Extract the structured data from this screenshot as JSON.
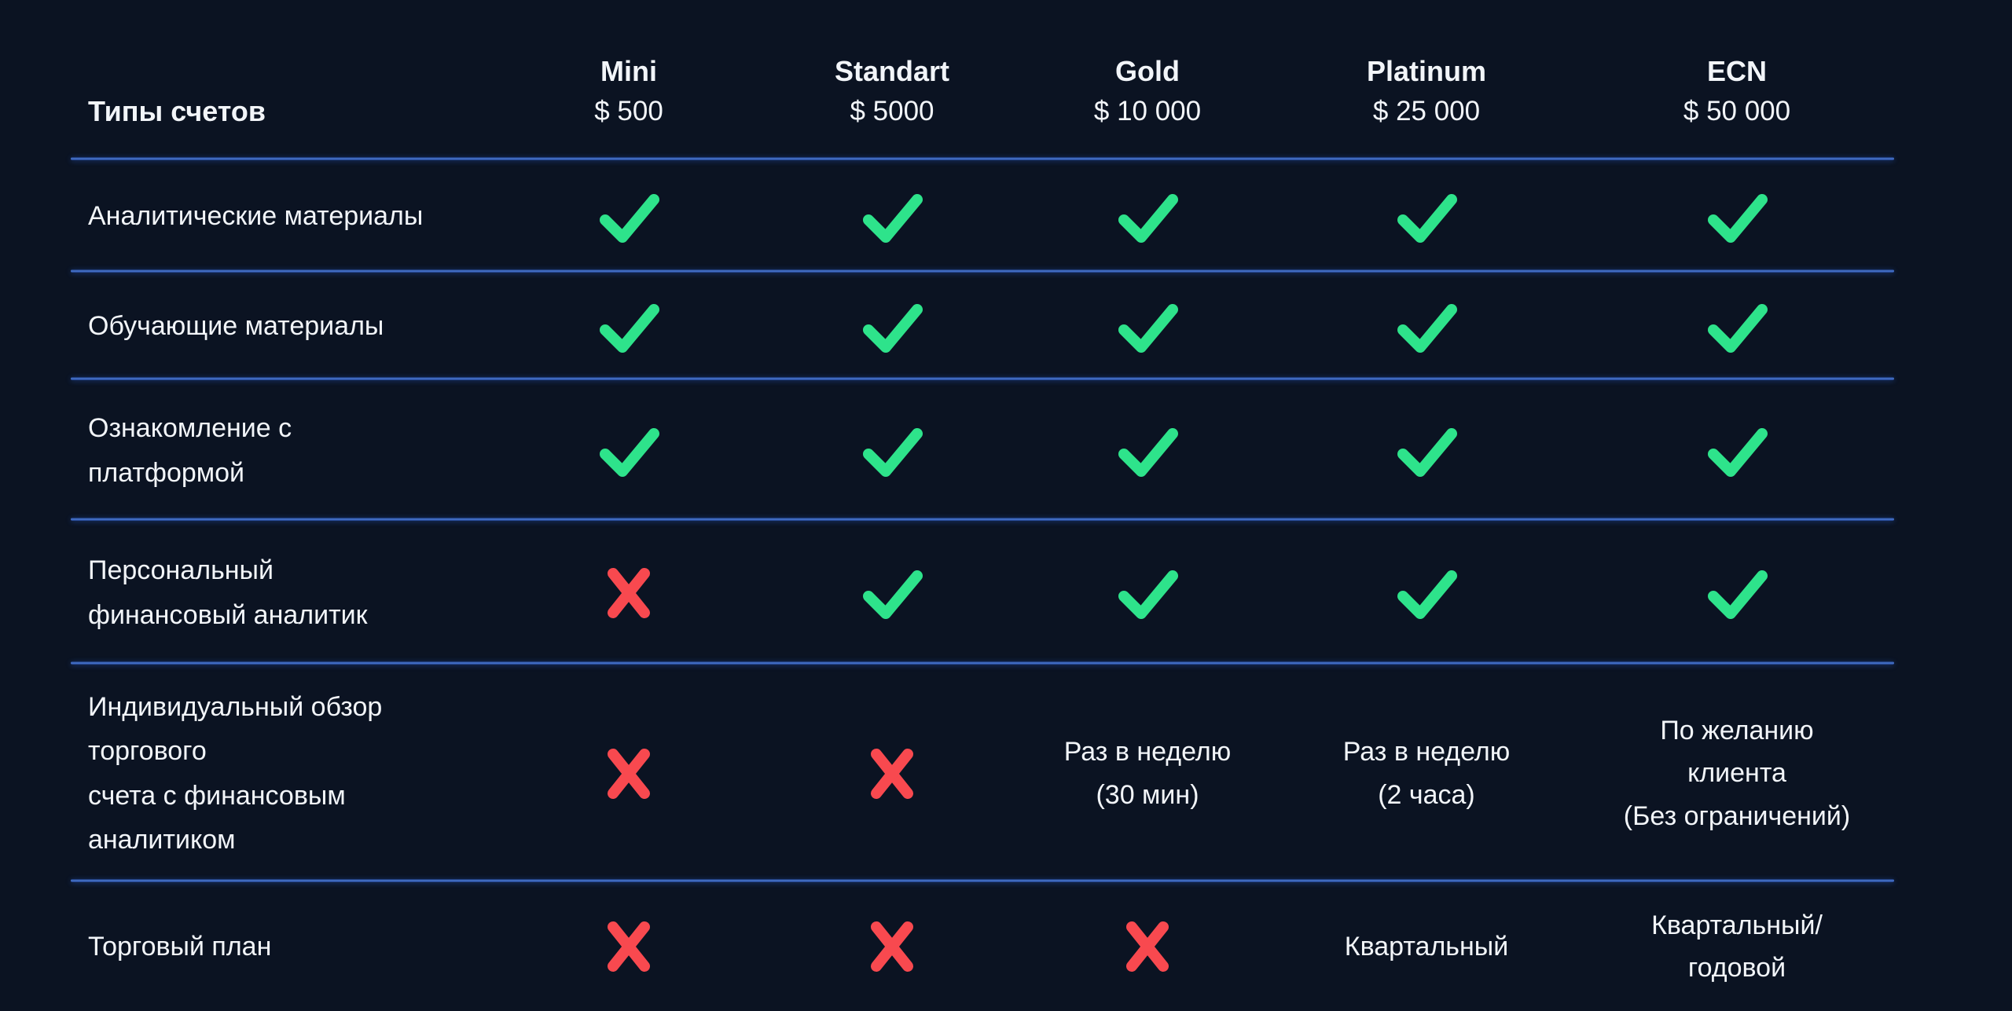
{
  "colors": {
    "background": "#0b1322",
    "text": "#f2f5f9",
    "check_green": "#2ee38b",
    "cross_red": "#f8494f",
    "divider_blue": "#4d7cd8"
  },
  "icons": {
    "check": "check-icon",
    "cross": "cross-icon"
  },
  "table": {
    "corner_label": "Типы счетов",
    "columns": [
      {
        "name": "Mini",
        "price": "$ 500"
      },
      {
        "name": "Standart",
        "price": "$ 5000"
      },
      {
        "name": "Gold",
        "price": "$ 10 000"
      },
      {
        "name": "Platinum",
        "price": "$ 25 000"
      },
      {
        "name": "ECN",
        "price": "$ 50 000"
      }
    ],
    "rows": [
      {
        "label": "Аналитические материалы",
        "cells": [
          "check",
          "check",
          "check",
          "check",
          "check"
        ]
      },
      {
        "label": "Обучающие материалы",
        "cells": [
          "check",
          "check",
          "check",
          "check",
          "check"
        ]
      },
      {
        "label": "Ознакомление с\nплатформой",
        "cells": [
          "check",
          "check",
          "check",
          "check",
          "check"
        ]
      },
      {
        "label": "Персональный\nфинансовый аналитик",
        "cells": [
          "cross",
          "check",
          "check",
          "check",
          "check"
        ]
      },
      {
        "label": "Индивидуальный обзор\nторгового\nсчета с финансовым\nаналитиком",
        "cells": [
          "cross",
          "cross",
          "Раз в неделю\n(30 мин)",
          "Раз в неделю\n(2 часа)",
          "По желанию\nклиента\n(Без ограничений)"
        ]
      },
      {
        "label": "Торговый план",
        "cells": [
          "cross",
          "cross",
          "cross",
          "Квартальный",
          "Квартальный/\nгодовой"
        ]
      }
    ]
  }
}
